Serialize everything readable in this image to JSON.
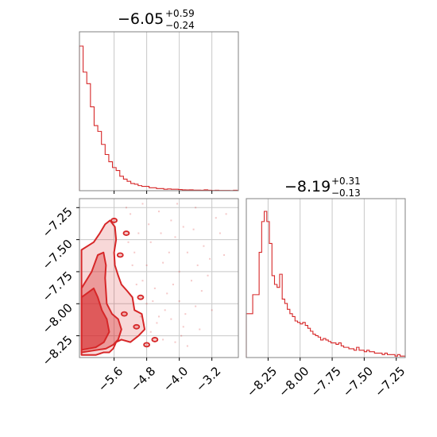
{
  "colors": {
    "accent": "#d62728",
    "grid": "#c8c8c8",
    "axis": "#808080"
  },
  "chart_data": [
    {
      "type": "histogram",
      "panel": "top-left",
      "title": {
        "value": "−6.05",
        "upper": "+0.59",
        "lower": "−0.24"
      },
      "xlim": [
        -6.45,
        -2.55
      ],
      "grid_x": [
        -5.6,
        -4.8,
        -4.0,
        -3.2
      ],
      "bins_x": [
        -6.45,
        -6.36,
        -6.27,
        -6.18,
        -6.09,
        -6.0,
        -5.91,
        -5.82,
        -5.73,
        -5.64,
        -5.55,
        -5.46,
        -5.37,
        -5.28,
        -5.19,
        -5.1,
        -5.01,
        -4.92,
        -4.83,
        -4.74,
        -4.65,
        -4.56,
        -4.47,
        -4.38,
        -4.29,
        -4.2,
        -4.11,
        -4.02,
        -3.93,
        -3.84,
        -3.75,
        -3.66,
        -3.57,
        -3.48,
        -3.39,
        -3.3,
        -3.21,
        -3.12,
        -3.03,
        -2.94,
        -2.85,
        -2.76,
        -2.67,
        -2.58,
        -2.55
      ],
      "values": [
        1.0,
        0.82,
        0.74,
        0.58,
        0.45,
        0.41,
        0.32,
        0.25,
        0.2,
        0.16,
        0.14,
        0.1,
        0.08,
        0.065,
        0.05,
        0.045,
        0.035,
        0.03,
        0.03,
        0.02,
        0.02,
        0.015,
        0.015,
        0.01,
        0.012,
        0.01,
        0.01,
        0.008,
        0.006,
        0.005,
        0.006,
        0.004,
        0.004,
        0.003,
        0.006,
        0.003,
        0.002,
        0.003,
        0.002,
        0.002,
        0.002,
        0.001,
        0.003,
        0.001
      ]
    },
    {
      "type": "scatter",
      "panel": "bottom-left",
      "xlim": [
        -6.45,
        -2.55
      ],
      "ylim": [
        -8.42,
        -7.18
      ],
      "grid_x": [
        -5.6,
        -4.8,
        -4.0,
        -3.2
      ],
      "grid_y": [
        -8.25,
        -8.0,
        -7.75,
        -7.5,
        -7.25
      ],
      "x_ticks": [
        "−5.6",
        "−4.8",
        "−4.0",
        "−3.2"
      ],
      "y_ticks": [
        "−8.25",
        "−8.00",
        "−7.75",
        "−7.50",
        "−7.25"
      ],
      "contours": [
        {
          "level": 0.9,
          "x": [
            -6.4,
            -6.05,
            -5.86,
            -5.72,
            -5.62,
            -5.55,
            -5.42,
            -5.2,
            -5.0,
            -4.85,
            -4.92,
            -5.1,
            -5.15,
            -5.28,
            -5.42,
            -5.5,
            -5.58,
            -5.6,
            -5.55,
            -5.58,
            -5.7,
            -5.82,
            -5.95,
            -6.1,
            -6.4
          ],
          "y": [
            -8.4,
            -8.4,
            -8.38,
            -8.38,
            -8.35,
            -8.3,
            -8.28,
            -8.3,
            -8.25,
            -8.2,
            -8.08,
            -8.05,
            -7.95,
            -7.9,
            -7.85,
            -7.78,
            -7.7,
            -7.6,
            -7.5,
            -7.4,
            -7.35,
            -7.38,
            -7.45,
            -7.52,
            -7.58
          ]
        },
        {
          "level": 0.6,
          "x": [
            -6.4,
            -6.0,
            -5.8,
            -5.62,
            -5.5,
            -5.42,
            -5.5,
            -5.65,
            -5.78,
            -5.8,
            -5.82,
            -5.8,
            -5.86,
            -6.0,
            -6.15,
            -6.4
          ],
          "y": [
            -8.38,
            -8.36,
            -8.35,
            -8.32,
            -8.28,
            -8.2,
            -8.12,
            -8.08,
            -8.0,
            -7.9,
            -7.8,
            -7.7,
            -7.6,
            -7.62,
            -7.75,
            -7.88
          ]
        },
        {
          "level": 0.3,
          "x": [
            -6.4,
            -6.05,
            -5.85,
            -5.72,
            -5.78,
            -5.9,
            -6.0,
            -6.1,
            -6.4
          ],
          "y": [
            -8.36,
            -8.34,
            -8.3,
            -8.22,
            -8.12,
            -8.05,
            -7.95,
            -7.88,
            -7.95
          ]
        }
      ],
      "islands": [
        {
          "x": -4.95,
          "y": -7.95
        },
        {
          "x": -5.35,
          "y": -8.08
        },
        {
          "x": -5.05,
          "y": -8.18
        },
        {
          "x": -4.8,
          "y": -8.32
        },
        {
          "x": -5.45,
          "y": -7.62
        },
        {
          "x": -5.3,
          "y": -7.45
        },
        {
          "x": -4.6,
          "y": -8.28
        },
        {
          "x": -5.6,
          "y": -7.35
        }
      ],
      "points": [
        [
          -5.2,
          -7.3
        ],
        [
          -4.5,
          -7.28
        ],
        [
          -4.2,
          -7.35
        ],
        [
          -3.6,
          -7.25
        ],
        [
          -3.1,
          -7.33
        ],
        [
          -5.0,
          -7.45
        ],
        [
          -4.7,
          -7.52
        ],
        [
          -4.1,
          -7.48
        ],
        [
          -3.8,
          -7.6
        ],
        [
          -3.4,
          -7.55
        ],
        [
          -2.9,
          -7.62
        ],
        [
          -5.1,
          -7.6
        ],
        [
          -4.8,
          -7.7
        ],
        [
          -4.4,
          -7.68
        ],
        [
          -4.0,
          -7.75
        ],
        [
          -3.7,
          -7.82
        ],
        [
          -3.3,
          -7.78
        ],
        [
          -4.9,
          -7.82
        ],
        [
          -4.6,
          -7.88
        ],
        [
          -4.3,
          -7.92
        ],
        [
          -4.0,
          -7.98
        ],
        [
          -3.6,
          -8.02
        ],
        [
          -3.2,
          -8.05
        ],
        [
          -4.8,
          -8.0
        ],
        [
          -4.5,
          -8.1
        ],
        [
          -4.2,
          -8.12
        ],
        [
          -3.9,
          -8.18
        ],
        [
          -3.5,
          -8.2
        ],
        [
          -4.7,
          -8.22
        ],
        [
          -4.4,
          -8.28
        ],
        [
          -4.1,
          -8.3
        ],
        [
          -3.8,
          -8.33
        ],
        [
          -5.3,
          -7.25
        ],
        [
          -4.9,
          -7.22
        ],
        [
          -3.9,
          -7.4
        ],
        [
          -3.0,
          -7.45
        ],
        [
          -4.25,
          -7.6
        ],
        [
          -3.55,
          -7.7
        ],
        [
          -4.65,
          -7.98
        ],
        [
          -4.35,
          -8.05
        ],
        [
          -3.85,
          -8.08
        ],
        [
          -4.55,
          -8.15
        ],
        [
          -5.15,
          -7.7
        ],
        [
          -5.05,
          -7.85
        ],
        [
          -4.95,
          -8.1
        ],
        [
          -5.25,
          -7.52
        ],
        [
          -4.15,
          -7.85
        ],
        [
          -3.45,
          -7.9
        ],
        [
          -2.85,
          -7.3
        ],
        [
          -3.95,
          -8.25
        ],
        [
          -4.75,
          -7.38
        ],
        [
          -4.45,
          -7.45
        ],
        [
          -3.65,
          -7.42
        ],
        [
          -3.25,
          -7.65
        ],
        [
          -4.05,
          -7.22
        ]
      ]
    },
    {
      "type": "histogram",
      "panel": "bottom-right",
      "title": {
        "value": "−8.19",
        "upper": "+0.31",
        "lower": "−0.13"
      },
      "xlim": [
        -8.42,
        -7.18
      ],
      "grid_x": [
        -8.25,
        -8.0,
        -7.75,
        -7.5,
        -7.25
      ],
      "x_ticks": [
        "−8.25",
        "−8.00",
        "−7.75",
        "−7.50",
        "−7.25"
      ],
      "bins_x": [
        -8.42,
        -8.37,
        -8.32,
        -8.3,
        -8.28,
        -8.26,
        -8.24,
        -8.22,
        -8.2,
        -8.18,
        -8.16,
        -8.14,
        -8.12,
        -8.1,
        -8.08,
        -8.06,
        -8.04,
        -8.02,
        -8.0,
        -7.98,
        -7.96,
        -7.94,
        -7.92,
        -7.9,
        -7.88,
        -7.86,
        -7.84,
        -7.82,
        -7.8,
        -7.78,
        -7.76,
        -7.74,
        -7.72,
        -7.7,
        -7.68,
        -7.66,
        -7.64,
        -7.62,
        -7.6,
        -7.58,
        -7.56,
        -7.54,
        -7.52,
        -7.5,
        -7.48,
        -7.46,
        -7.44,
        -7.42,
        -7.4,
        -7.38,
        -7.36,
        -7.34,
        -7.32,
        -7.3,
        -7.28,
        -7.26,
        -7.24,
        -7.22,
        -7.2,
        -7.18
      ],
      "values": [
        0.3,
        0.43,
        0.72,
        0.93,
        1.0,
        0.93,
        0.78,
        0.56,
        0.5,
        0.48,
        0.57,
        0.4,
        0.37,
        0.33,
        0.3,
        0.28,
        0.25,
        0.24,
        0.23,
        0.24,
        0.22,
        0.2,
        0.18,
        0.16,
        0.15,
        0.14,
        0.12,
        0.13,
        0.12,
        0.11,
        0.1,
        0.1,
        0.09,
        0.1,
        0.08,
        0.07,
        0.07,
        0.06,
        0.06,
        0.05,
        0.07,
        0.05,
        0.05,
        0.04,
        0.05,
        0.04,
        0.04,
        0.03,
        0.03,
        0.03,
        0.02,
        0.03,
        0.02,
        0.02,
        0.02,
        0.01,
        0.02,
        0.01,
        0.01
      ]
    }
  ]
}
